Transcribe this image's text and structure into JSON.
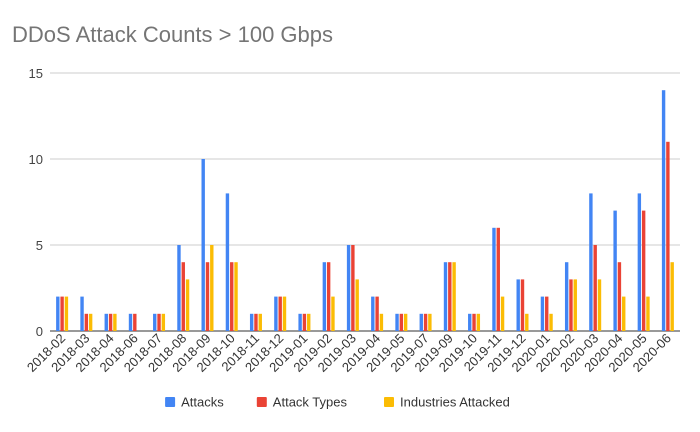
{
  "chart_data": {
    "type": "bar",
    "title": "DDoS Attack Counts > 100 Gbps",
    "xlabel": "",
    "ylabel": "",
    "ylim": [
      0,
      15
    ],
    "yticks": [
      "0",
      "5",
      "10",
      "15"
    ],
    "grid": true,
    "legend_position": "bottom",
    "categories": [
      "2018-02",
      "2018-03",
      "2018-04",
      "2018-06",
      "2018-07",
      "2018-08",
      "2018-09",
      "2018-10",
      "2018-11",
      "2018-12",
      "2019-01",
      "2019-02",
      "2019-03",
      "2019-04",
      "2019-05",
      "2019-07",
      "2019-09",
      "2019-10",
      "2019-11",
      "2019-12",
      "2020-01",
      "2020-02",
      "2020-03",
      "2020-04",
      "2020-05",
      "2020-06"
    ],
    "series": [
      {
        "name": "Attacks",
        "color": "#4285F4",
        "values": [
          2,
          2,
          1,
          1,
          1,
          5,
          10,
          8,
          1,
          2,
          1,
          4,
          5,
          2,
          1,
          1,
          4,
          1,
          6,
          3,
          2,
          4,
          8,
          7,
          8,
          14
        ]
      },
      {
        "name": "Attack Types",
        "color": "#EA4335",
        "values": [
          2,
          1,
          1,
          1,
          1,
          4,
          4,
          4,
          1,
          2,
          1,
          4,
          5,
          2,
          1,
          1,
          4,
          1,
          6,
          3,
          2,
          3,
          5,
          4,
          7,
          11
        ]
      },
      {
        "name": "Industries Attacked",
        "color": "#FBBC04",
        "values": [
          2,
          1,
          1,
          0,
          1,
          3,
          5,
          4,
          1,
          2,
          1,
          2,
          3,
          1,
          1,
          1,
          4,
          1,
          2,
          1,
          1,
          3,
          3,
          2,
          2,
          4
        ]
      }
    ]
  }
}
